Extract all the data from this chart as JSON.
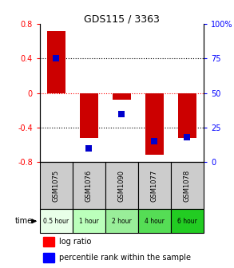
{
  "title": "GDS115 / 3363",
  "samples": [
    "GSM1075",
    "GSM1076",
    "GSM1090",
    "GSM1077",
    "GSM1078"
  ],
  "time_labels": [
    "0.5 hour",
    "1 hour",
    "2 hour",
    "4 hour",
    "6 hour"
  ],
  "time_colors": [
    "#e8ffe8",
    "#bbffbb",
    "#99ee99",
    "#55dd55",
    "#22cc22"
  ],
  "log_ratios": [
    0.72,
    -0.52,
    -0.08,
    -0.72,
    -0.52
  ],
  "percentile_ranks": [
    75,
    10,
    35,
    15,
    18
  ],
  "ylim": [
    -0.8,
    0.8
  ],
  "yticks_left": [
    -0.8,
    -0.4,
    0,
    0.4,
    0.8
  ],
  "yticks_right": [
    0,
    25,
    50,
    75,
    100
  ],
  "bar_color": "#cc0000",
  "pct_color": "#0000cc",
  "zero_line_color": "#cc0000",
  "legend_log_ratio": "log ratio",
  "legend_pct": "percentile rank within the sample",
  "bar_width": 0.55,
  "pct_marker_size": 6
}
